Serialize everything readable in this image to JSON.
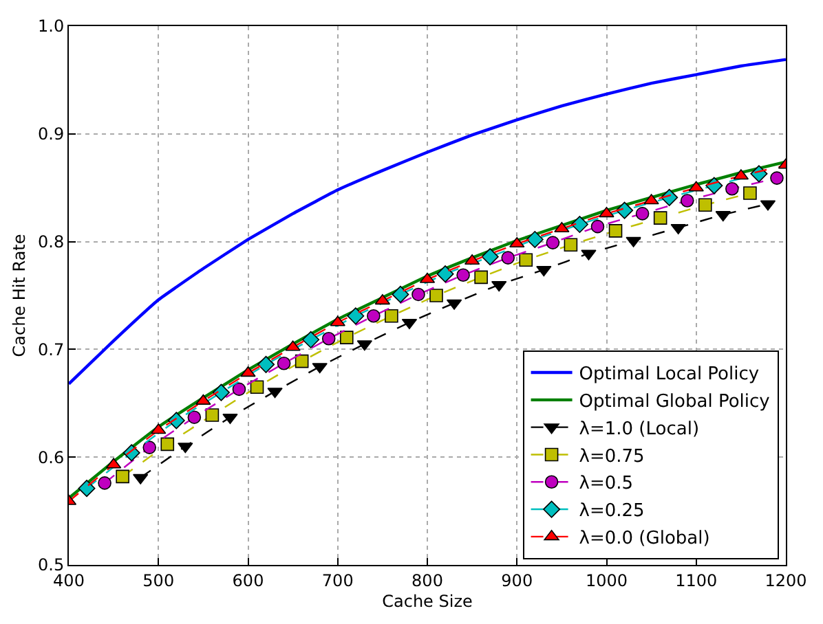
{
  "chart_data": {
    "type": "line",
    "xlabel": "Cache Size",
    "ylabel": "Cache Hit Rate",
    "xlim": [
      400,
      1200
    ],
    "ylim": [
      0.5,
      1.0
    ],
    "xticks": [
      400,
      500,
      600,
      700,
      800,
      900,
      1000,
      1100,
      1200
    ],
    "yticks": [
      {
        "value": 0.5,
        "label": "0.5"
      },
      {
        "value": 0.6,
        "label": "0.6"
      },
      {
        "value": 0.7,
        "label": "0.7"
      },
      {
        "value": 0.8,
        "label": "0.8"
      },
      {
        "value": 0.9,
        "label": "0.9"
      },
      {
        "value": 1.0,
        "label": "1.0"
      }
    ],
    "grid": true,
    "legend": "bottom right",
    "series": [
      {
        "name": "Optimal Local Policy",
        "color": "#0000ff",
        "marker": "none",
        "line_style": "solid",
        "x": [
          400,
          450,
          500,
          550,
          600,
          650,
          700,
          750,
          800,
          850,
          900,
          950,
          1000,
          1050,
          1100,
          1150,
          1200
        ],
        "values": [
          0.668,
          0.708,
          0.746,
          0.775,
          0.802,
          0.826,
          0.848,
          0.866,
          0.883,
          0.899,
          0.913,
          0.926,
          0.937,
          0.947,
          0.955,
          0.963,
          0.969
        ]
      },
      {
        "name": "Optimal Global Policy",
        "color": "#008000",
        "marker": "none",
        "line_style": "solid",
        "x": [
          400,
          450,
          500,
          550,
          600,
          650,
          700,
          750,
          800,
          850,
          900,
          950,
          1000,
          1050,
          1100,
          1150,
          1200
        ],
        "values": [
          0.562,
          0.596,
          0.628,
          0.655,
          0.681,
          0.705,
          0.728,
          0.748,
          0.768,
          0.785,
          0.801,
          0.815,
          0.829,
          0.841,
          0.853,
          0.864,
          0.874
        ]
      },
      {
        "name": "λ=1.0 (Local)",
        "color": "#000000",
        "marker": "triangle-down",
        "line_style": "dashed",
        "x": [
          480,
          530,
          580,
          630,
          680,
          730,
          780,
          830,
          880,
          930,
          980,
          1030,
          1080,
          1130,
          1180
        ],
        "values": [
          0.581,
          0.61,
          0.637,
          0.661,
          0.684,
          0.705,
          0.725,
          0.743,
          0.76,
          0.774,
          0.789,
          0.801,
          0.813,
          0.825,
          0.835
        ]
      },
      {
        "name": "λ=0.75",
        "color": "#bfbf00",
        "marker": "square",
        "line_style": "dashed",
        "x": [
          460,
          510,
          560,
          610,
          660,
          710,
          760,
          810,
          860,
          910,
          960,
          1010,
          1060,
          1110,
          1160
        ],
        "values": [
          0.582,
          0.612,
          0.639,
          0.665,
          0.689,
          0.711,
          0.731,
          0.75,
          0.767,
          0.783,
          0.797,
          0.81,
          0.822,
          0.834,
          0.845
        ]
      },
      {
        "name": "λ=0.5",
        "color": "#bf00bf",
        "marker": "circle",
        "line_style": "dashed",
        "x": [
          440,
          490,
          540,
          590,
          640,
          690,
          740,
          790,
          840,
          890,
          940,
          990,
          1040,
          1090,
          1140,
          1190
        ],
        "values": [
          0.576,
          0.609,
          0.637,
          0.663,
          0.687,
          0.71,
          0.731,
          0.751,
          0.769,
          0.785,
          0.799,
          0.814,
          0.826,
          0.838,
          0.849,
          0.859
        ]
      },
      {
        "name": "λ=0.25",
        "color": "#00bfbf",
        "marker": "diamond",
        "line_style": "dashed",
        "x": [
          420,
          470,
          520,
          570,
          620,
          670,
          720,
          770,
          820,
          870,
          920,
          970,
          1020,
          1070,
          1120,
          1170
        ],
        "values": [
          0.571,
          0.604,
          0.634,
          0.66,
          0.686,
          0.709,
          0.731,
          0.751,
          0.77,
          0.786,
          0.802,
          0.816,
          0.829,
          0.841,
          0.852,
          0.863
        ]
      },
      {
        "name": "λ=0.0 (Global)",
        "color": "#ff0000",
        "marker": "triangle",
        "line_style": "dashed",
        "x": [
          400,
          450,
          500,
          550,
          600,
          650,
          700,
          750,
          800,
          850,
          900,
          950,
          1000,
          1050,
          1100,
          1150,
          1200
        ],
        "values": [
          0.559,
          0.593,
          0.625,
          0.652,
          0.678,
          0.702,
          0.725,
          0.745,
          0.765,
          0.782,
          0.798,
          0.812,
          0.826,
          0.838,
          0.85,
          0.861,
          0.871
        ]
      }
    ]
  }
}
